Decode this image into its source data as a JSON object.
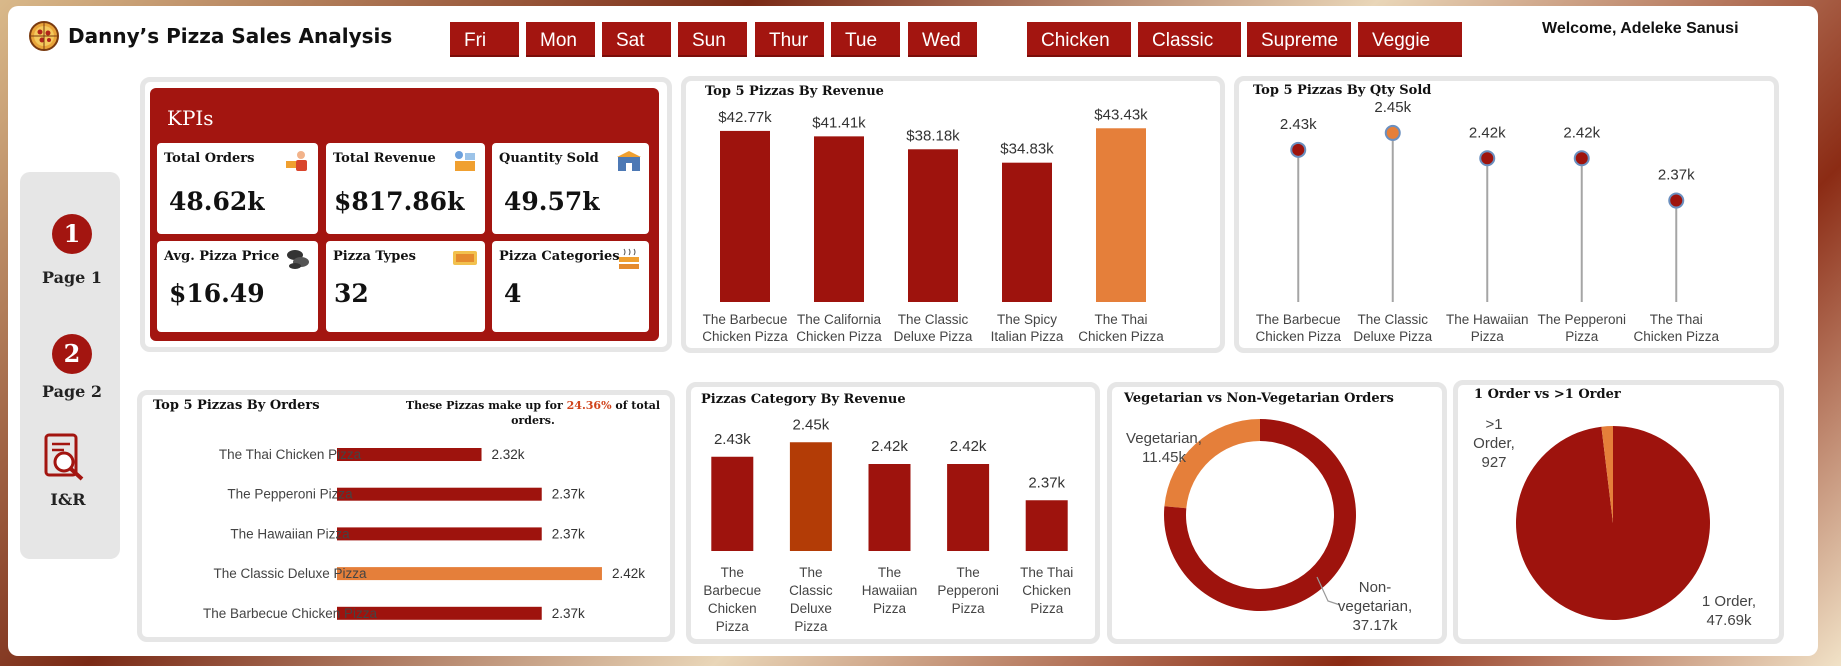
{
  "header": {
    "title": "Danny’s Pizza Sales Analysis",
    "welcome": "Welcome, Adeleke Sanusi",
    "logo_icon": "pizza-icon"
  },
  "slicers": {
    "days": [
      "Fri",
      "Mon",
      "Sat",
      "Sun",
      "Thur",
      "Tue",
      "Wed"
    ],
    "categories": [
      "Chicken",
      "Classic",
      "Supreme",
      "Veggie"
    ]
  },
  "nav": {
    "page1_number": "1",
    "page1_label": "Page 1",
    "page2_number": "2",
    "page2_label": "Page 2",
    "ir_label": "I&R",
    "ir_icon": "report-search-icon"
  },
  "kpis": {
    "heading": "KPIs",
    "items": [
      {
        "label": "Total Orders",
        "value": "48.62k",
        "icon": "delivery-person-icon"
      },
      {
        "label": "Total Revenue",
        "value": "$817.86k",
        "icon": "cash-register-icon"
      },
      {
        "label": "Quantity Sold",
        "value": "49.57k",
        "icon": "store-icon"
      },
      {
        "label": "Avg. Pizza Price",
        "value": "$16.49",
        "icon": "coins-icon"
      },
      {
        "label": "Pizza Types",
        "value": "32",
        "icon": "pizza-box-icon"
      },
      {
        "label": "Pizza Categories",
        "value": "4",
        "icon": "stacked-boxes-icon"
      }
    ]
  },
  "colors": {
    "primary": "#9e130d",
    "highlight": "#e57f3a",
    "dark_orange": "#b33c06",
    "card_border": "#e6e6e6",
    "stem": "#a5a5a5"
  },
  "orders_note": {
    "prefix": "These Pizzas make up for ",
    "percent": "24.36%",
    "suffix": " of total",
    "line2": "orders."
  },
  "chart_data": [
    {
      "id": "revenue",
      "type": "bar",
      "title": "Top 5 Pizzas By Revenue",
      "categories": [
        "The Barbecue Chicken Pizza",
        "The California Chicken Pizza",
        "The Classic Deluxe Pizza",
        "The Spicy Italian Pizza",
        "The Thai Chicken Pizza"
      ],
      "values": [
        42.77,
        41.41,
        38.18,
        34.83,
        43.43
      ],
      "labels": [
        "$42.77k",
        "$41.41k",
        "$38.18k",
        "$34.83k",
        "$43.43k"
      ],
      "highlight_index": 4,
      "ylim": [
        0,
        45
      ]
    },
    {
      "id": "qty",
      "type": "scatter",
      "title": "Top 5 Pizzas By Qty Sold",
      "categories": [
        "The Barbecue Chicken Pizza",
        "The Classic Deluxe Pizza",
        "The Hawaiian Pizza",
        "The Pepperoni Pizza",
        "The Thai Chicken Pizza"
      ],
      "values": [
        2.43,
        2.45,
        2.42,
        2.42,
        2.37
      ],
      "labels": [
        "2.43k",
        "2.45k",
        "2.42k",
        "2.42k",
        "2.37k"
      ],
      "highlight_index": 1,
      "ylim": [
        2.25,
        2.47
      ]
    },
    {
      "id": "orders",
      "type": "bar",
      "title": "Top 5 Pizzas By Orders",
      "categories": [
        "The Thai Chicken Pizza",
        "The Pepperoni Pizza",
        "The Hawaiian Pizza",
        "The Classic Deluxe Pizza",
        "The Barbecue Chicken Pizza"
      ],
      "values": [
        2.32,
        2.37,
        2.37,
        2.42,
        2.37
      ],
      "labels": [
        "2.32k",
        "2.37k",
        "2.37k",
        "2.42k",
        "2.37k"
      ],
      "highlight_index": 3,
      "xlim": [
        2.2,
        2.43
      ]
    },
    {
      "id": "category",
      "type": "bar",
      "title": "Pizzas Category By Revenue",
      "categories": [
        "The Barbecue Chicken Pizza",
        "The Classic Deluxe Pizza",
        "The Hawaiian Pizza",
        "The Pepperoni Pizza",
        "The Thai Chicken Pizza"
      ],
      "values": [
        2.43,
        2.45,
        2.42,
        2.42,
        2.37
      ],
      "labels": [
        "2.43k",
        "2.45k",
        "2.42k",
        "2.42k",
        "2.37k"
      ],
      "highlight_index": 1,
      "ylim": [
        2.3,
        2.46
      ]
    },
    {
      "id": "veg",
      "type": "pie",
      "title": "Vegetarian vs Non-Vegetarian Orders",
      "donut": true,
      "slices": [
        {
          "name": "Vegetarian",
          "value": 11.45,
          "label": "Vegetarian,\n11.45k"
        },
        {
          "name": "Non-vegetarian",
          "value": 37.17,
          "label": "Non-\nvegetarian,\n37.17k"
        }
      ]
    },
    {
      "id": "oneorder",
      "type": "pie",
      "title": "1 Order vs >1 Order",
      "slices": [
        {
          "name": ">1 Order",
          "value": 927,
          "label": ">1\nOrder,\n927"
        },
        {
          "name": "1 Order",
          "value": 47690,
          "label": "1 Order,\n47.69k"
        }
      ]
    }
  ]
}
